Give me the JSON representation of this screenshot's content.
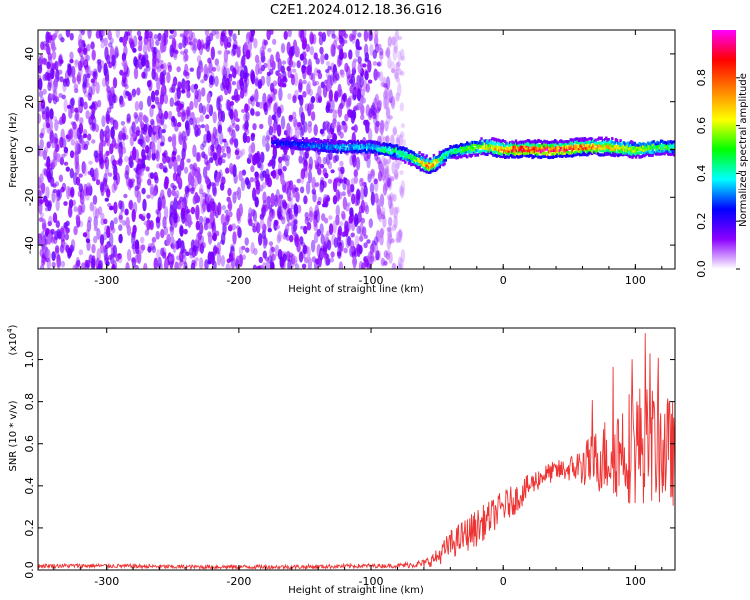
{
  "figure_title": "C2E1.2024.012.18.36.G16",
  "chart_data": [
    {
      "type": "heatmap",
      "xlabel": "Height of straight line (km)",
      "ylabel": "Frequency (Hz)",
      "xlim": [
        -352,
        130
      ],
      "ylim": [
        -50,
        50
      ],
      "x_ticks": [
        -300,
        -200,
        -100,
        0,
        100
      ],
      "x_tick_labels": [
        "-300",
        "-200",
        "-100",
        "0",
        "100"
      ],
      "y_ticks": [
        -40,
        -20,
        0,
        20,
        40
      ],
      "y_tick_labels": [
        "-40",
        "-20",
        "0",
        "20",
        "40"
      ],
      "colorbar": {
        "label": "Normalized spectral amplitude",
        "range": [
          0,
          1
        ],
        "ticks": [
          0.0,
          0.2,
          0.4,
          0.6,
          0.8
        ],
        "tick_labels": [
          "0.0",
          "0.2",
          "0.4",
          "0.6",
          "0.8"
        ],
        "colormap": [
          "#ffffff",
          "#8b00ff",
          "#0000ff",
          "#00ffff",
          "#00ff00",
          "#ffff00",
          "#ff8000",
          "#ff0000",
          "#ff00ff"
        ]
      },
      "noise_region": {
        "x": [
          -352,
          -75
        ],
        "y": [
          -50,
          50
        ],
        "amplitude": 0.08
      },
      "signal_track": {
        "x": [
          -175,
          -150,
          -125,
          -100,
          -90,
          -80,
          -70,
          -60,
          -55,
          -50,
          -45,
          -40,
          -30,
          -20,
          -10,
          0,
          10,
          20,
          40,
          60,
          80,
          100,
          120,
          130
        ],
        "y": [
          3,
          2,
          1,
          1,
          0,
          -1,
          -3,
          -6,
          -7,
          -5,
          -3,
          -1,
          0,
          1,
          1,
          0,
          0,
          0,
          0,
          1,
          1,
          0,
          1,
          1
        ],
        "amplitude": [
          0.25,
          0.3,
          0.35,
          0.4,
          0.45,
          0.5,
          0.55,
          0.75,
          0.85,
          0.7,
          0.5,
          0.45,
          0.55,
          0.6,
          0.7,
          0.8,
          0.9,
          0.95,
          0.95,
          0.85,
          0.75,
          0.65,
          0.55,
          0.5
        ]
      }
    },
    {
      "type": "line",
      "xlabel": "Height of straight line (km)",
      "ylabel": "SNR (10 * v/v)",
      "y_multiplier_label": "(x10",
      "y_multiplier_exponent": "4",
      "xlim": [
        -352,
        130
      ],
      "ylim": [
        0,
        1.15
      ],
      "x_ticks": [
        -300,
        -200,
        -100,
        0,
        100
      ],
      "x_tick_labels": [
        "-300",
        "-200",
        "-100",
        "0",
        "100"
      ],
      "y_ticks": [
        0.0,
        0.2,
        0.4,
        0.6,
        0.8,
        1.0
      ],
      "y_tick_labels": [
        "0.0",
        "0.2",
        "0.4",
        "0.6",
        "0.8",
        "1.0"
      ],
      "color": "#ee3333",
      "series": [
        {
          "x": [
            -352,
            -300,
            -250,
            -200,
            -150,
            -100,
            -80,
            -60,
            -50,
            -40,
            -30,
            -20,
            -10,
            0,
            10,
            20,
            30,
            40,
            50,
            60,
            70,
            80,
            90,
            100,
            110,
            120,
            130
          ],
          "y": [
            0.02,
            0.02,
            0.015,
            0.015,
            0.015,
            0.02,
            0.02,
            0.03,
            0.06,
            0.12,
            0.16,
            0.2,
            0.25,
            0.3,
            0.34,
            0.4,
            0.45,
            0.47,
            0.48,
            0.5,
            0.52,
            0.55,
            0.58,
            0.6,
            0.6,
            0.58,
            0.55
          ],
          "spread": [
            0.01,
            0.01,
            0.01,
            0.01,
            0.01,
            0.01,
            0.01,
            0.02,
            0.04,
            0.07,
            0.08,
            0.09,
            0.08,
            0.08,
            0.07,
            0.06,
            0.05,
            0.05,
            0.06,
            0.1,
            0.15,
            0.2,
            0.25,
            0.3,
            0.28,
            0.28,
            0.25
          ]
        }
      ]
    }
  ]
}
